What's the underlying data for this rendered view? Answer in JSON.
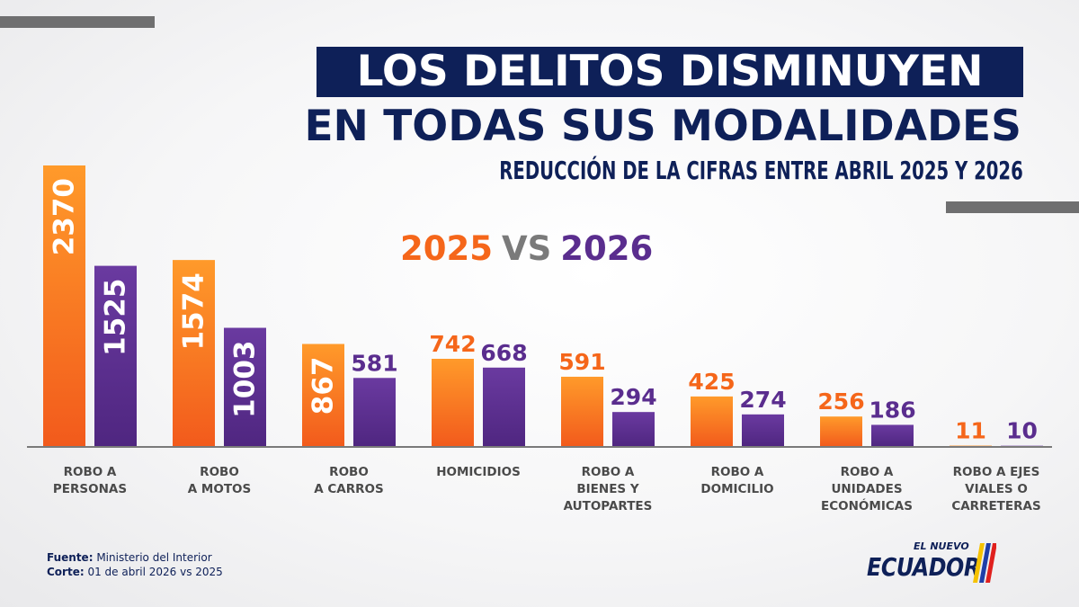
{
  "header": {
    "title_line1": "LOS DELITOS DISMINUYEN",
    "title_line2": "EN TODAS SUS MODALIDADES",
    "subtitle": "REDUCCIÓN DE LA CIFRAS ENTRE ABRIL 2025 Y 2026"
  },
  "legend": {
    "label_2025": "2025",
    "vs": "VS",
    "label_2026": "2026"
  },
  "colors": {
    "series_2025": "#f5661a",
    "series_2026": "#5a2d8e",
    "title_bg": "#0e2058",
    "axis": "#7a7a7a"
  },
  "chart_data": {
    "type": "bar",
    "categories": [
      [
        "ROBO A",
        "PERSONAS"
      ],
      [
        "ROBO",
        "A MOTOS"
      ],
      [
        "ROBO",
        "A CARROS"
      ],
      [
        "HOMICIDIOS"
      ],
      [
        "ROBO A",
        "BIENES Y",
        "AUTOPARTES"
      ],
      [
        "ROBO A",
        "DOMICILIO"
      ],
      [
        "ROBO A",
        "UNIDADES",
        "ECONÓMICAS"
      ],
      [
        "ROBO A EJES",
        "VIALES O",
        "CARRETERAS"
      ]
    ],
    "series": [
      {
        "name": "2025",
        "values": [
          2370,
          1574,
          867,
          742,
          591,
          425,
          256,
          11
        ]
      },
      {
        "name": "2026",
        "values": [
          1525,
          1003,
          581,
          668,
          294,
          274,
          186,
          10
        ]
      }
    ],
    "title": "LOS DELITOS DISMINUYEN EN TODAS SUS MODALIDADES",
    "subtitle": "REDUCCIÓN DE LA CIFRAS ENTRE ABRIL 2025 Y 2026",
    "xlabel": "",
    "ylabel": "",
    "grid": false,
    "legend_position": "top-center"
  },
  "footer": {
    "source_label": "Fuente:",
    "source_value": " Ministerio del Interior",
    "cut_label": "Corte:",
    "cut_value": " 01 de abril 2026 vs 2025"
  },
  "logo": {
    "small_text": "EL NUEVO",
    "big_text": "ECUADOR"
  }
}
